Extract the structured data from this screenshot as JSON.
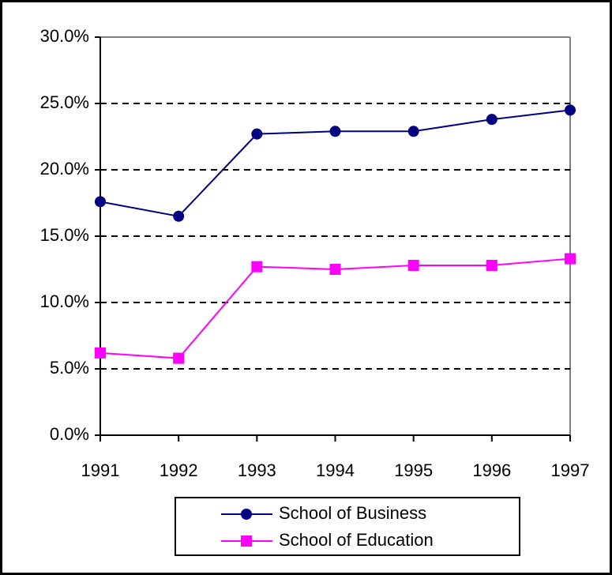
{
  "chart_data": {
    "type": "line",
    "categories": [
      "1991",
      "1992",
      "1993",
      "1994",
      "1995",
      "1996",
      "1997"
    ],
    "series": [
      {
        "name": "School of Business",
        "color": "#000080",
        "marker": "circle",
        "values": [
          17.6,
          16.5,
          22.7,
          22.9,
          22.9,
          23.8,
          24.5
        ]
      },
      {
        "name": "School of Education",
        "color": "#ff00ff",
        "marker": "square",
        "values": [
          6.2,
          5.8,
          12.7,
          12.5,
          12.8,
          12.8,
          13.3
        ]
      }
    ],
    "ylim": [
      0,
      30
    ],
    "yticks": [
      {
        "value": 0,
        "label": "0.0%"
      },
      {
        "value": 5,
        "label": "5.0%"
      },
      {
        "value": 10,
        "label": "10.0%"
      },
      {
        "value": 15,
        "label": "15.0%"
      },
      {
        "value": 20,
        "label": "20.0%"
      },
      {
        "value": 25,
        "label": "25.0%"
      },
      {
        "value": 30,
        "label": "30.0%"
      }
    ],
    "grid": true,
    "legend": "bottom"
  }
}
